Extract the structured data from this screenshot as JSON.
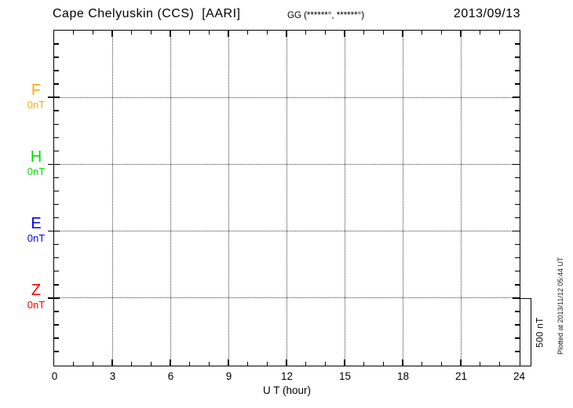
{
  "header": {
    "station_title": "Cape Chelyuskin (CCS)  [AARI]",
    "coords_label": "GG (******°, ******°)",
    "date": "2013/09/13"
  },
  "chart_data": {
    "type": "line",
    "title": "Cape Chelyuskin (CCS) [AARI] magnetogram",
    "date": "2013/09/13",
    "xlabel": "U T (hour)",
    "xlim": [
      0,
      24
    ],
    "x_ticks": [
      0,
      3,
      6,
      9,
      12,
      15,
      18,
      21,
      24
    ],
    "x_minor_tick_step_hours": 1,
    "grid_hours": [
      3,
      6,
      9,
      12,
      15,
      18,
      21
    ],
    "grid_style": "dotted",
    "components": [
      {
        "name": "F",
        "baseline_label": "0nT",
        "baseline_value_nt": 0,
        "color": "#FFA800",
        "values": []
      },
      {
        "name": "H",
        "baseline_label": "0nT",
        "baseline_value_nt": 0,
        "color": "#00DC00",
        "values": []
      },
      {
        "name": "E",
        "baseline_label": "0nT",
        "baseline_value_nt": 0,
        "color": "#0000E0",
        "values": []
      },
      {
        "name": "Z",
        "baseline_label": "0nT",
        "baseline_value_nt": 0,
        "color": "#F00000",
        "values": []
      }
    ],
    "y_minor_tick_nt": 100,
    "scale_bar": {
      "label": "500 nT",
      "span_nt": 500
    },
    "plotted_at": "Plotted at 2013/11/12 05:44 UT"
  }
}
